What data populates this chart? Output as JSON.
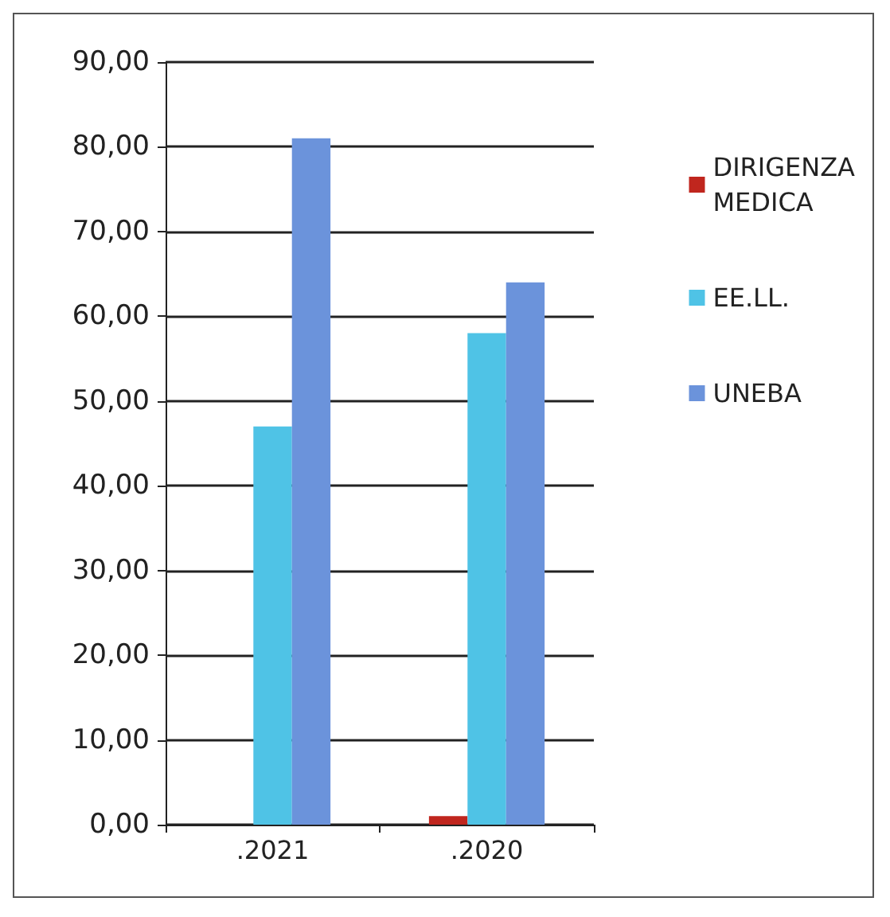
{
  "chart_data": {
    "type": "bar",
    "categories": [
      ".2021",
      ".2020"
    ],
    "series": [
      {
        "name": "DIRIGENZA\nMEDICA",
        "color": "#c0261e",
        "values": [
          0,
          1
        ]
      },
      {
        "name": "EE.LL.",
        "color": "#4fc3e6",
        "values": [
          47,
          58
        ]
      },
      {
        "name": "UNEBA",
        "color": "#6b93db",
        "values": [
          81,
          64
        ]
      }
    ],
    "ylim": [
      0,
      90
    ],
    "yticks": [
      {
        "value": 0,
        "label": "0,00"
      },
      {
        "value": 10,
        "label": "10,00"
      },
      {
        "value": 20,
        "label": "20,00"
      },
      {
        "value": 30,
        "label": "30,00"
      },
      {
        "value": 40,
        "label": "40,00"
      },
      {
        "value": 50,
        "label": "50,00"
      },
      {
        "value": 60,
        "label": "60,00"
      },
      {
        "value": 70,
        "label": "70,00"
      },
      {
        "value": 80,
        "label": "80,00"
      },
      {
        "value": 90,
        "label": "90,00"
      }
    ],
    "grid": "y",
    "legend": "right"
  }
}
